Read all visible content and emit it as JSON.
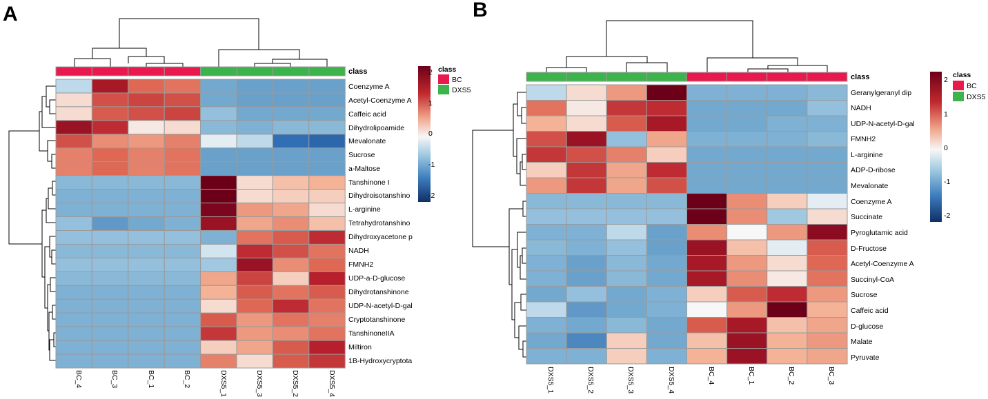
{
  "chart_data": [
    {
      "type": "heatmap",
      "panel_label": "A",
      "class_label": "class",
      "columns": [
        "BC_4",
        "BC_3",
        "BC_1",
        "BC_2",
        "DXS5_1",
        "DXS5_3",
        "DXS5_2",
        "DXS5_4"
      ],
      "column_classes": [
        "BC",
        "BC",
        "BC",
        "BC",
        "DXS5",
        "DXS5",
        "DXS5",
        "DXS5"
      ],
      "rows": [
        "Coenzyme A",
        "Acetyl-Coenzyme A",
        "Caffeic acid",
        "Dihydrolipoamide",
        "Mevalonate",
        "Sucrose",
        "a-Maltose",
        "Tanshinone I",
        "Dihydroisotanshino",
        "L-arginine",
        "Tetrahydrotanshino",
        "Dihydroxyacetone p",
        "NADH",
        "FMNH2",
        "UDP-a-D-glucose",
        "Dihydrotanshinone",
        "UDP-N-acetyl-D-gal",
        "Cryptotanshinone",
        "TanshinoneIIA",
        "Miltiron",
        "1B-Hydroxycryptota"
      ],
      "values": [
        [
          -0.3,
          1.8,
          1.1,
          1.0,
          -0.9,
          -1.0,
          -1.0,
          -1.0
        ],
        [
          0.2,
          1.3,
          1.4,
          1.3,
          -0.9,
          -1.0,
          -1.0,
          -1.0
        ],
        [
          0.2,
          1.2,
          1.3,
          1.4,
          -0.6,
          -0.9,
          -0.9,
          -0.9
        ],
        [
          1.9,
          1.6,
          0.1,
          0.2,
          -0.7,
          -0.8,
          -0.7,
          -0.7
        ],
        [
          1.3,
          0.8,
          0.7,
          0.9,
          -0.1,
          -0.3,
          -1.6,
          -1.7
        ],
        [
          0.9,
          1.1,
          0.9,
          1.0,
          -1.0,
          -1.0,
          -1.0,
          -1.0
        ],
        [
          0.9,
          1.1,
          0.9,
          1.0,
          -1.0,
          -1.0,
          -1.0,
          -1.0
        ],
        [
          -0.7,
          -0.7,
          -0.7,
          -0.7,
          2.2,
          0.2,
          0.4,
          0.5
        ],
        [
          -0.8,
          -0.8,
          -0.8,
          -0.8,
          2.2,
          0.2,
          0.3,
          0.3
        ],
        [
          -0.8,
          -0.8,
          -0.8,
          -0.8,
          2.1,
          0.7,
          0.6,
          0.2
        ],
        [
          -0.6,
          -1.1,
          -0.9,
          -0.8,
          1.9,
          0.6,
          0.8,
          0.4
        ],
        [
          -0.6,
          -0.6,
          -0.6,
          -0.6,
          -0.8,
          1.0,
          1.2,
          1.6
        ],
        [
          -0.7,
          -0.7,
          -0.7,
          -0.7,
          -0.2,
          1.6,
          1.3,
          1.0
        ],
        [
          -0.6,
          -0.6,
          -0.6,
          -0.6,
          -0.5,
          1.9,
          0.8,
          1.1
        ],
        [
          -0.7,
          -0.7,
          -0.7,
          -0.7,
          0.6,
          1.4,
          0.3,
          1.7
        ],
        [
          -0.8,
          -0.8,
          -0.8,
          -0.8,
          0.5,
          1.2,
          1.0,
          1.2
        ],
        [
          -0.8,
          -0.8,
          -0.8,
          -0.8,
          0.2,
          1.1,
          1.6,
          1.0
        ],
        [
          -0.8,
          -0.8,
          -0.8,
          -0.8,
          1.2,
          0.7,
          1.0,
          0.9
        ],
        [
          -0.8,
          -0.8,
          -0.8,
          -0.8,
          1.5,
          0.7,
          0.8,
          1.0
        ],
        [
          -0.8,
          -0.8,
          -0.8,
          -0.8,
          0.3,
          0.6,
          1.2,
          1.7
        ],
        [
          -0.8,
          -0.8,
          -0.8,
          -0.8,
          0.9,
          0.2,
          1.2,
          1.5
        ]
      ]
    },
    {
      "type": "heatmap",
      "panel_label": "B",
      "class_label": "class",
      "columns": [
        "DXS5_1",
        "DXS5_2",
        "DXS5_3",
        "DXS5_4",
        "BC_4",
        "BC_1",
        "BC_2",
        "BC_3"
      ],
      "column_classes": [
        "DXS5",
        "DXS5",
        "DXS5",
        "DXS5",
        "BC",
        "BC",
        "BC",
        "BC"
      ],
      "rows": [
        "Geranylgeranyl dip",
        "NADH",
        "UDP-N-acetyl-D-gal",
        "FMNH2",
        "L-arginine",
        "ADP-D-ribose",
        "Mevalonate",
        "Coenzyme A",
        "Succinate",
        "Pyroglutamic acid",
        "D-Fructose",
        "Acetyl-Coenzyme A",
        "Succinyl-CoA",
        "Sucrose",
        "Caffeic acid",
        "D-glucose",
        "Malate",
        "Pyruvate"
      ],
      "values": [
        [
          -0.3,
          0.2,
          0.7,
          2.2,
          -0.8,
          -0.8,
          -0.8,
          -0.7
        ],
        [
          1.0,
          0.1,
          1.5,
          1.6,
          -0.9,
          -0.9,
          -0.9,
          -0.6
        ],
        [
          0.5,
          0.2,
          1.2,
          1.8,
          -0.9,
          -0.9,
          -0.8,
          -0.8
        ],
        [
          1.3,
          1.9,
          -0.6,
          0.6,
          -0.8,
          -0.8,
          -0.8,
          -0.7
        ],
        [
          1.5,
          1.3,
          0.9,
          0.3,
          -0.9,
          -0.9,
          -0.9,
          -0.9
        ],
        [
          0.3,
          1.5,
          0.6,
          1.6,
          -0.9,
          -0.9,
          -0.9,
          -0.9
        ],
        [
          0.7,
          1.5,
          0.6,
          1.3,
          -0.9,
          -0.9,
          -0.9,
          -0.9
        ],
        [
          -0.7,
          -0.7,
          -0.7,
          -0.7,
          2.2,
          0.8,
          0.3,
          -0.1
        ],
        [
          -0.6,
          -0.6,
          -0.6,
          -0.6,
          2.2,
          0.8,
          -0.5,
          0.2
        ],
        [
          -0.8,
          -0.8,
          -0.3,
          -1.0,
          0.8,
          0.0,
          0.7,
          2.0
        ],
        [
          -0.7,
          -0.8,
          -0.6,
          -1.0,
          1.9,
          0.4,
          -0.1,
          1.2
        ],
        [
          -0.8,
          -1.0,
          -0.7,
          -0.9,
          1.8,
          0.7,
          0.2,
          1.1
        ],
        [
          -0.8,
          -1.0,
          -0.7,
          -0.9,
          1.8,
          0.8,
          0.1,
          1.0
        ],
        [
          -0.9,
          -0.6,
          -0.9,
          -0.8,
          0.3,
          1.2,
          1.6,
          0.7
        ],
        [
          -0.3,
          -1.1,
          -0.9,
          -0.8,
          0.0,
          0.7,
          2.2,
          0.5
        ],
        [
          -0.8,
          -0.9,
          -0.7,
          -0.9,
          1.2,
          1.8,
          0.4,
          0.6
        ],
        [
          -0.9,
          -1.3,
          0.3,
          -0.9,
          0.4,
          1.9,
          0.5,
          0.7
        ],
        [
          -0.8,
          -0.8,
          0.3,
          -0.8,
          0.5,
          1.9,
          0.5,
          0.6
        ]
      ]
    }
  ],
  "legend": {
    "title": "class",
    "entries": [
      {
        "label": "BC",
        "color": "#e8194c"
      },
      {
        "label": "DXS5",
        "color": "#3cb44b"
      }
    ],
    "scale_A": {
      "ticks": [
        "2",
        "1",
        "0",
        "-1",
        "-2"
      ],
      "values": [
        2,
        1,
        0,
        -1,
        -2
      ],
      "range": [
        -2.4,
        2.2
      ]
    },
    "scale_B": {
      "ticks": [
        "2",
        "1",
        "0",
        "-1",
        "-2"
      ],
      "values": [
        2,
        1,
        0,
        -1,
        -2
      ],
      "range": [
        -2.4,
        2.2
      ]
    }
  },
  "colors": {
    "low": "#16437a",
    "mid_low": "#4d8fc8",
    "neutral": "#f7f7f7",
    "mid_high": "#e4795f",
    "high": "#6d0019",
    "grid": "#9a9a9a"
  }
}
